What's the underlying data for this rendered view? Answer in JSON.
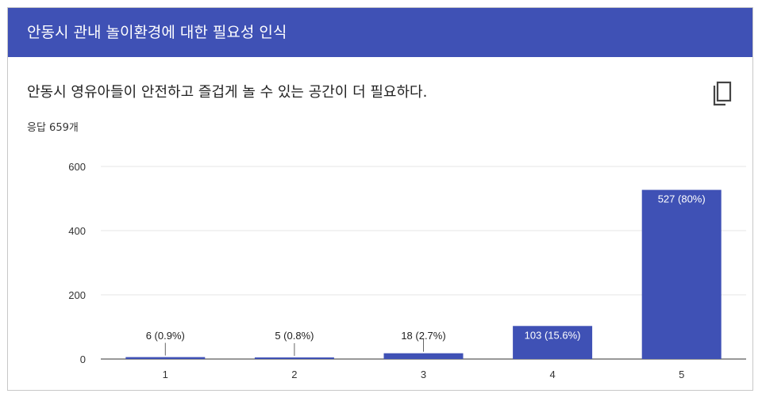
{
  "header": {
    "title": "안동시 관내 놀이환경에 대한 필요성 인식"
  },
  "question": {
    "text": "안동시 영유아들이 안전하고 즐겁게 놀 수 있는 공간이 더 필요하다.",
    "response_count": "응답 659개"
  },
  "copy_icon": "copy-icon",
  "colors": {
    "header": "#3f51b5",
    "bar": "#3f51b5"
  },
  "chart_data": {
    "type": "bar",
    "categories": [
      "1",
      "2",
      "3",
      "4",
      "5"
    ],
    "values": [
      6,
      5,
      18,
      103,
      527
    ],
    "data_labels": [
      "6 (0.9%)",
      "5 (0.8%)",
      "18 (2.7%)",
      "103 (15.6%)",
      "527 (80%)"
    ],
    "y_ticks": [
      "0",
      "200",
      "400",
      "600"
    ],
    "ylim": [
      0,
      600
    ],
    "grid": true,
    "title": "",
    "xlabel": "",
    "ylabel": ""
  }
}
